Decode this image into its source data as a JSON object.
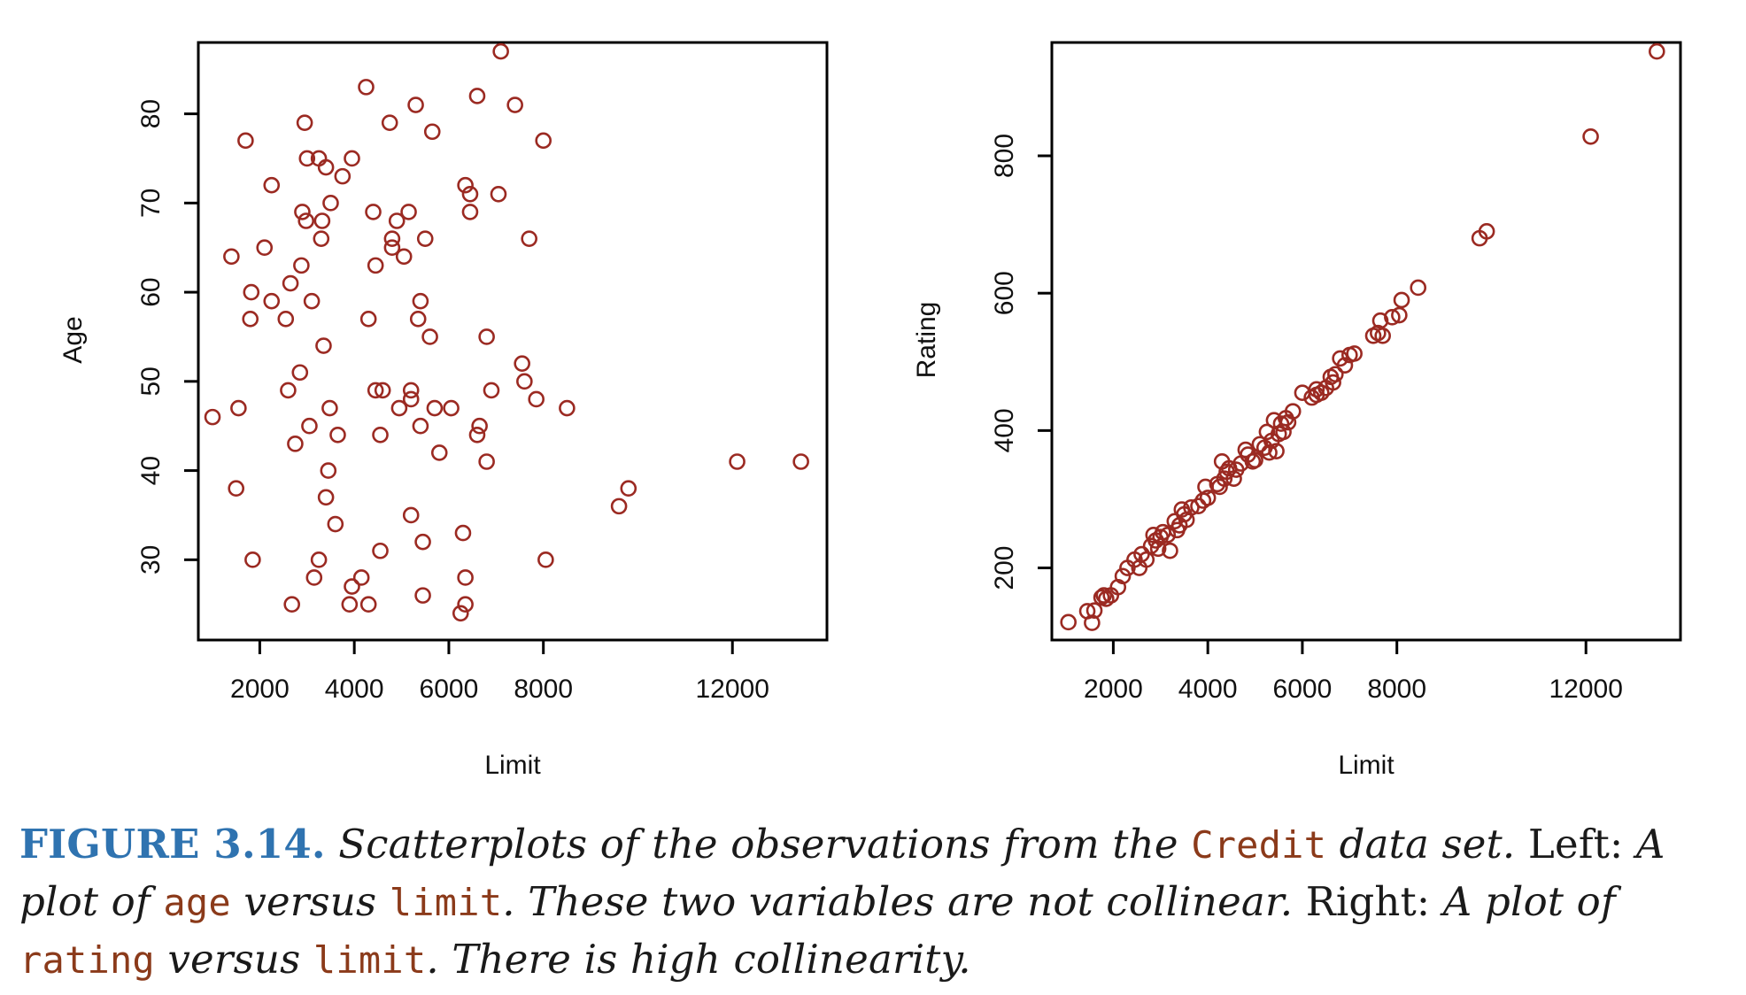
{
  "chart_data": [
    {
      "type": "scatter",
      "title": "",
      "xlabel": "Limit",
      "ylabel": "Age",
      "xlim": [
        700,
        14000
      ],
      "ylim": [
        21,
        88
      ],
      "x_ticks": [
        "2000",
        "4000",
        "6000",
        "8000",
        "12000"
      ],
      "y_ticks": [
        "30",
        "40",
        "50",
        "60",
        "70",
        "80"
      ],
      "marker_color": "#9b2a22",
      "grid": false,
      "points": [
        [
          1000,
          46
        ],
        [
          1500,
          38
        ],
        [
          1550,
          47
        ],
        [
          1400,
          64
        ],
        [
          1700,
          77
        ],
        [
          1800,
          57
        ],
        [
          1820,
          60
        ],
        [
          1850,
          30
        ],
        [
          2100,
          65
        ],
        [
          2250,
          59
        ],
        [
          2250,
          72
        ],
        [
          2550,
          57
        ],
        [
          2600,
          49
        ],
        [
          2650,
          61
        ],
        [
          2680,
          25
        ],
        [
          2750,
          43
        ],
        [
          2850,
          51
        ],
        [
          2880,
          63
        ],
        [
          2900,
          69
        ],
        [
          2950,
          79
        ],
        [
          2980,
          68
        ],
        [
          3000,
          75
        ],
        [
          3050,
          45
        ],
        [
          3100,
          59
        ],
        [
          3150,
          28
        ],
        [
          3250,
          30
        ],
        [
          3250,
          75
        ],
        [
          3300,
          66
        ],
        [
          3320,
          68
        ],
        [
          3350,
          54
        ],
        [
          3400,
          37
        ],
        [
          3400,
          74
        ],
        [
          3450,
          40
        ],
        [
          3480,
          47
        ],
        [
          3500,
          70
        ],
        [
          3600,
          34
        ],
        [
          3650,
          44
        ],
        [
          3750,
          73
        ],
        [
          3900,
          25
        ],
        [
          3950,
          75
        ],
        [
          3950,
          27
        ],
        [
          4150,
          28
        ],
        [
          4250,
          83
        ],
        [
          4300,
          57
        ],
        [
          4300,
          25
        ],
        [
          4400,
          69
        ],
        [
          4450,
          63
        ],
        [
          4450,
          49
        ],
        [
          4550,
          31
        ],
        [
          4550,
          44
        ],
        [
          4600,
          49
        ],
        [
          4750,
          79
        ],
        [
          4800,
          65
        ],
        [
          4800,
          66
        ],
        [
          4900,
          68
        ],
        [
          4950,
          47
        ],
        [
          5050,
          64
        ],
        [
          5150,
          69
        ],
        [
          5200,
          48
        ],
        [
          5200,
          35
        ],
        [
          5200,
          49
        ],
        [
          5300,
          81
        ],
        [
          5350,
          57
        ],
        [
          5400,
          59
        ],
        [
          5400,
          45
        ],
        [
          5450,
          26
        ],
        [
          5450,
          32
        ],
        [
          5500,
          66
        ],
        [
          5600,
          55
        ],
        [
          5650,
          78
        ],
        [
          5700,
          47
        ],
        [
          5800,
          42
        ],
        [
          6050,
          47
        ],
        [
          6250,
          24
        ],
        [
          6300,
          33
        ],
        [
          6350,
          28
        ],
        [
          6350,
          72
        ],
        [
          6350,
          25
        ],
        [
          6450,
          71
        ],
        [
          6450,
          69
        ],
        [
          6600,
          82
        ],
        [
          6600,
          44
        ],
        [
          6650,
          45
        ],
        [
          6800,
          55
        ],
        [
          6800,
          41
        ],
        [
          6900,
          49
        ],
        [
          7050,
          71
        ],
        [
          7100,
          87
        ],
        [
          7400,
          81
        ],
        [
          7550,
          52
        ],
        [
          7600,
          50
        ],
        [
          7700,
          66
        ],
        [
          7850,
          48
        ],
        [
          8000,
          77
        ],
        [
          8050,
          30
        ],
        [
          8500,
          47
        ],
        [
          9600,
          36
        ],
        [
          9800,
          38
        ],
        [
          12100,
          41
        ],
        [
          13450,
          41
        ]
      ]
    },
    {
      "type": "scatter",
      "title": "",
      "xlabel": "Limit",
      "ylabel": "Rating",
      "xlim": [
        700,
        14000
      ],
      "ylim": [
        95,
        965
      ],
      "x_ticks": [
        "2000",
        "4000",
        "6000",
        "8000",
        "12000"
      ],
      "y_ticks": [
        "200",
        "400",
        "600",
        "800"
      ],
      "marker_color": "#9b2a22",
      "grid": false,
      "points": [
        [
          1050,
          121
        ],
        [
          1450,
          137
        ],
        [
          1550,
          120
        ],
        [
          1600,
          138
        ],
        [
          1750,
          157
        ],
        [
          1800,
          160
        ],
        [
          1850,
          155
        ],
        [
          1950,
          160
        ],
        [
          2100,
          172
        ],
        [
          2200,
          188
        ],
        [
          2300,
          200
        ],
        [
          2450,
          212
        ],
        [
          2550,
          200
        ],
        [
          2600,
          220
        ],
        [
          2700,
          212
        ],
        [
          2800,
          232
        ],
        [
          2850,
          248
        ],
        [
          2900,
          240
        ],
        [
          2950,
          228
        ],
        [
          3000,
          245
        ],
        [
          3050,
          252
        ],
        [
          3150,
          248
        ],
        [
          3200,
          225
        ],
        [
          3300,
          268
        ],
        [
          3350,
          255
        ],
        [
          3400,
          262
        ],
        [
          3450,
          285
        ],
        [
          3500,
          278
        ],
        [
          3550,
          270
        ],
        [
          3650,
          288
        ],
        [
          3800,
          290
        ],
        [
          3900,
          298
        ],
        [
          3950,
          318
        ],
        [
          4000,
          302
        ],
        [
          4200,
          322
        ],
        [
          4250,
          318
        ],
        [
          4300,
          355
        ],
        [
          4350,
          330
        ],
        [
          4400,
          340
        ],
        [
          4450,
          345
        ],
        [
          4550,
          330
        ],
        [
          4600,
          343
        ],
        [
          4700,
          352
        ],
        [
          4800,
          372
        ],
        [
          4850,
          365
        ],
        [
          4950,
          355
        ],
        [
          5000,
          357
        ],
        [
          5100,
          380
        ],
        [
          5200,
          375
        ],
        [
          5250,
          398
        ],
        [
          5300,
          368
        ],
        [
          5350,
          385
        ],
        [
          5400,
          415
        ],
        [
          5450,
          370
        ],
        [
          5500,
          395
        ],
        [
          5550,
          410
        ],
        [
          5600,
          398
        ],
        [
          5650,
          418
        ],
        [
          5700,
          412
        ],
        [
          5800,
          428
        ],
        [
          6000,
          455
        ],
        [
          6200,
          448
        ],
        [
          6300,
          452
        ],
        [
          6300,
          460
        ],
        [
          6400,
          455
        ],
        [
          6500,
          462
        ],
        [
          6600,
          478
        ],
        [
          6650,
          470
        ],
        [
          6700,
          482
        ],
        [
          6800,
          505
        ],
        [
          6900,
          495
        ],
        [
          7000,
          510
        ],
        [
          7100,
          512
        ],
        [
          7500,
          538
        ],
        [
          7600,
          542
        ],
        [
          7650,
          560
        ],
        [
          7700,
          538
        ],
        [
          7900,
          565
        ],
        [
          8050,
          568
        ],
        [
          8100,
          590
        ],
        [
          8450,
          608
        ],
        [
          9750,
          680
        ],
        [
          9900,
          690
        ],
        [
          12100,
          828
        ],
        [
          13500,
          952
        ]
      ]
    }
  ],
  "caption": {
    "figure_label": "FIGURE 3.14.",
    "p1": "Scatterplots of the observations from the",
    "code1": "Credit",
    "p2": "data set.",
    "r1": "Left:",
    "p3": "A plot of",
    "code2": "age",
    "p4": "versus",
    "code3": "limit",
    "p5": ". These two variables are not collinear.",
    "r2": "Right:",
    "p6": "A plot of",
    "code4": "rating",
    "p7": "versus",
    "code5": "limit",
    "p8": ". There is high collinearity."
  }
}
